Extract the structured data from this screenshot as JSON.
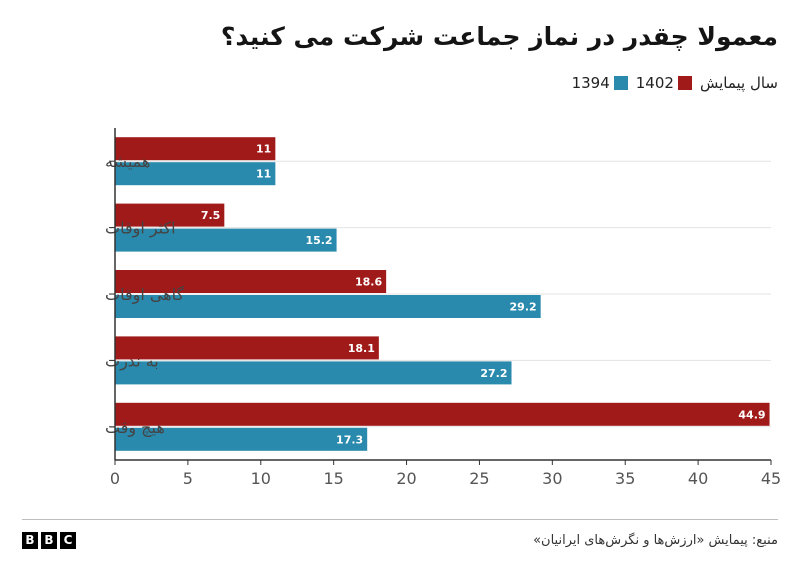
{
  "title": "معمولا چقدر در نماز جماعت شرکت می کنید؟",
  "legend": {
    "label": "سال پیمایش",
    "items": [
      {
        "name": "1402",
        "color": "#a11a1a"
      },
      {
        "name": "1394",
        "color": "#2a8aad"
      }
    ]
  },
  "source": "منبع: پیمایش «ارزش‌ها و نگرش‌های ایرانیان»",
  "logo": {
    "letters": [
      "B",
      "B",
      "C"
    ]
  },
  "chart_data": {
    "type": "bar",
    "orientation": "horizontal",
    "categories": [
      "همیشه",
      "اکثر اوقات",
      "گاهی اوقات",
      "به ندرت",
      "هیچ وقت"
    ],
    "series": [
      {
        "name": "1402",
        "color": "#a11a1a",
        "values": [
          11,
          7.5,
          18.6,
          18.1,
          44.9
        ]
      },
      {
        "name": "1394",
        "color": "#2a8aad",
        "values": [
          11,
          15.2,
          29.2,
          27.2,
          17.3
        ]
      }
    ],
    "xlim": [
      0,
      45
    ],
    "xticks": [
      0,
      5,
      10,
      15,
      20,
      25,
      30,
      35,
      40,
      45
    ],
    "grid": true,
    "legend_position": "top-right"
  }
}
